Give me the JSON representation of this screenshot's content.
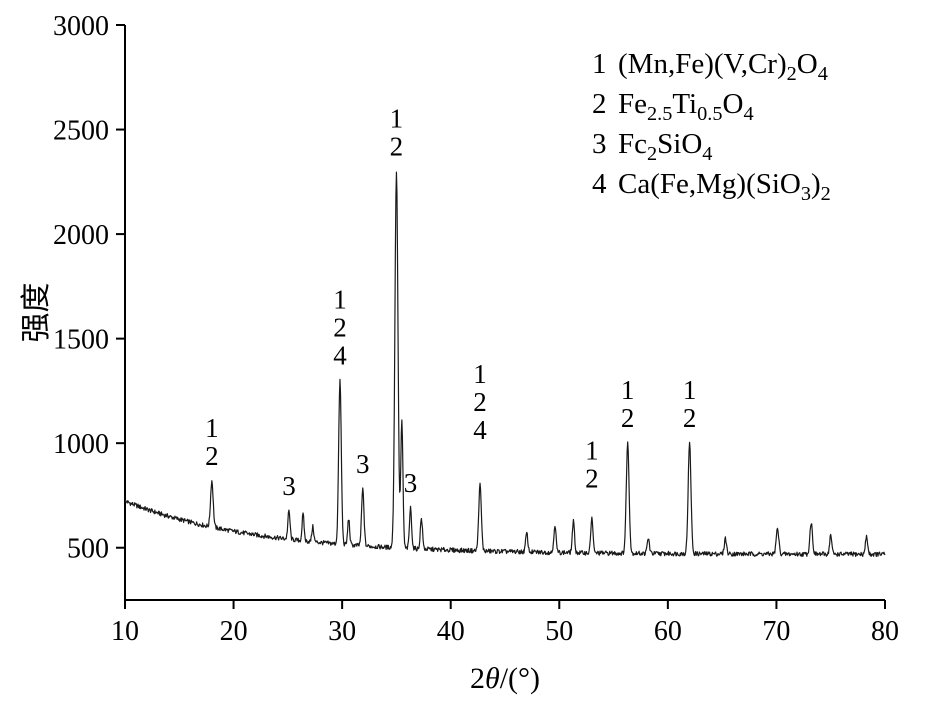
{
  "chart_data": {
    "type": "line",
    "title": "",
    "xlabel": "2θ/(°)",
    "ylabel": "强度",
    "xlim": [
      10,
      80
    ],
    "ylim": [
      250,
      3000
    ],
    "x_ticks": [
      10,
      20,
      30,
      40,
      50,
      60,
      70,
      80
    ],
    "y_ticks": [
      500,
      1000,
      1500,
      2000,
      2500,
      3000
    ],
    "grid": false,
    "legend_position": "top-right-inside",
    "line_color": "#1a1a1a",
    "axis_color": "#000000",
    "background_curve": {
      "base": 468,
      "amp": 255,
      "decay": 12,
      "x0": 10
    },
    "noise_amp": 11,
    "sample_step": 0.05,
    "peaks": [
      {
        "x": 18.0,
        "top": 820,
        "sigma": 0.12
      },
      {
        "x": 25.1,
        "top": 675,
        "sigma": 0.1
      },
      {
        "x": 26.4,
        "top": 660,
        "sigma": 0.09
      },
      {
        "x": 27.3,
        "top": 600,
        "sigma": 0.09
      },
      {
        "x": 29.8,
        "top": 1300,
        "sigma": 0.12
      },
      {
        "x": 30.6,
        "top": 640,
        "sigma": 0.09
      },
      {
        "x": 31.9,
        "top": 780,
        "sigma": 0.11
      },
      {
        "x": 35.0,
        "top": 2300,
        "sigma": 0.14
      },
      {
        "x": 35.5,
        "top": 1100,
        "sigma": 0.1
      },
      {
        "x": 36.3,
        "top": 690,
        "sigma": 0.1
      },
      {
        "x": 37.3,
        "top": 640,
        "sigma": 0.1
      },
      {
        "x": 42.7,
        "top": 800,
        "sigma": 0.12
      },
      {
        "x": 47.0,
        "top": 570,
        "sigma": 0.1
      },
      {
        "x": 49.6,
        "top": 610,
        "sigma": 0.1
      },
      {
        "x": 51.3,
        "top": 625,
        "sigma": 0.1
      },
      {
        "x": 53.0,
        "top": 645,
        "sigma": 0.1
      },
      {
        "x": 56.3,
        "top": 1000,
        "sigma": 0.13
      },
      {
        "x": 58.2,
        "top": 545,
        "sigma": 0.1
      },
      {
        "x": 62.0,
        "top": 1000,
        "sigma": 0.13
      },
      {
        "x": 65.3,
        "top": 545,
        "sigma": 0.1
      },
      {
        "x": 70.1,
        "top": 590,
        "sigma": 0.12
      },
      {
        "x": 73.2,
        "top": 620,
        "sigma": 0.12
      },
      {
        "x": 75.0,
        "top": 560,
        "sigma": 0.1
      },
      {
        "x": 78.3,
        "top": 555,
        "sigma": 0.1
      }
    ],
    "peak_labels": [
      {
        "x": 18.0,
        "lines": [
          "1",
          "2"
        ],
        "gap": 16
      },
      {
        "x": 25.1,
        "lines": [
          "3"
        ],
        "gap": 16
      },
      {
        "x": 29.8,
        "lines": [
          "1",
          "2",
          "4"
        ],
        "gap": 16
      },
      {
        "x": 31.9,
        "lines": [
          "3"
        ],
        "gap": 16
      },
      {
        "x": 35.0,
        "lines": [
          "1",
          "2"
        ],
        "gap": 16
      },
      {
        "x": 36.3,
        "lines": [
          "3"
        ],
        "gap": 16
      },
      {
        "x": 42.7,
        "lines": [
          "1",
          "2",
          "4"
        ],
        "gap": 46
      },
      {
        "x": 53.0,
        "lines": [
          "1",
          "2"
        ],
        "gap": 30
      },
      {
        "x": 56.3,
        "lines": [
          "1",
          "2"
        ],
        "gap": 16
      },
      {
        "x": 62.0,
        "lines": [
          "1",
          "2"
        ],
        "gap": 16
      }
    ],
    "legend": [
      {
        "num": "1",
        "formula_plain": "(Mn,Fe)(V,Cr)2O4",
        "parts": [
          {
            "t": "(Mn,Fe)(V,Cr)"
          },
          {
            "sub": "2"
          },
          {
            "t": "O"
          },
          {
            "sub": "4"
          }
        ]
      },
      {
        "num": "2",
        "formula_plain": "Fe2.5Ti0.5O4",
        "parts": [
          {
            "t": "Fe"
          },
          {
            "sub": "2.5"
          },
          {
            "t": "Ti"
          },
          {
            "sub": "0.5"
          },
          {
            "t": "O"
          },
          {
            "sub": "4"
          }
        ]
      },
      {
        "num": "3",
        "formula_plain": "Fc2SiO4",
        "parts": [
          {
            "t": "Fc"
          },
          {
            "sub": "2"
          },
          {
            "t": "SiO"
          },
          {
            "sub": "4"
          }
        ]
      },
      {
        "num": "4",
        "formula_plain": "Ca(Fe,Mg)(SiO3)2",
        "parts": [
          {
            "t": "Ca(Fe,Mg)(SiO"
          },
          {
            "sub": "3"
          },
          {
            "t": ")"
          },
          {
            "sub": "2"
          }
        ]
      }
    ]
  }
}
